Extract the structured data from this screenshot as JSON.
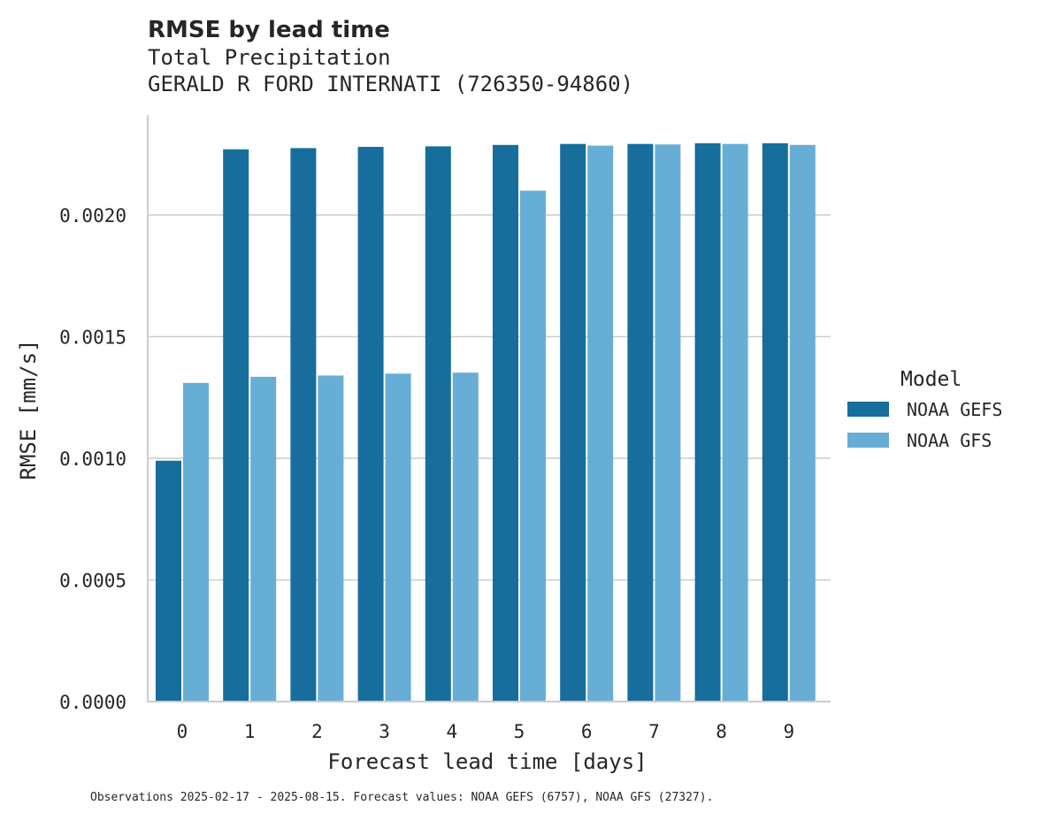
{
  "chart_data": {
    "type": "bar",
    "title": "RMSE by lead time",
    "subtitle_lines": [
      "Total Precipitation",
      "GERALD R FORD INTERNATI (726350-94860)"
    ],
    "xlabel": "Forecast lead time [days]",
    "ylabel": "RMSE [mm/s]",
    "categories": [
      "0",
      "1",
      "2",
      "3",
      "4",
      "5",
      "6",
      "7",
      "8",
      "9"
    ],
    "ylim": [
      0,
      0.0024
    ],
    "yticks": [
      0.0,
      0.0005,
      0.001,
      0.0015,
      0.002
    ],
    "ytick_labels": [
      "0.0000",
      "0.0005",
      "0.0010",
      "0.0015",
      "0.0020"
    ],
    "grid": "y",
    "legend": {
      "title": "Model",
      "position": "right"
    },
    "series": [
      {
        "name": "NOAA GEFS",
        "color": "#176d9c",
        "values": [
          0.00099,
          0.00227,
          0.002275,
          0.00228,
          0.002282,
          0.002288,
          0.002292,
          0.002292,
          0.002295,
          0.002295
        ]
      },
      {
        "name": "NOAA GFS",
        "color": "#67aed6",
        "values": [
          0.00131,
          0.001335,
          0.00134,
          0.001348,
          0.001352,
          0.0021,
          0.002285,
          0.00229,
          0.002292,
          0.002288
        ]
      }
    ],
    "footnote": "Observations 2025-02-17 - 2025-08-15. Forecast values: NOAA GEFS (6757), NOAA GFS (27327)."
  }
}
